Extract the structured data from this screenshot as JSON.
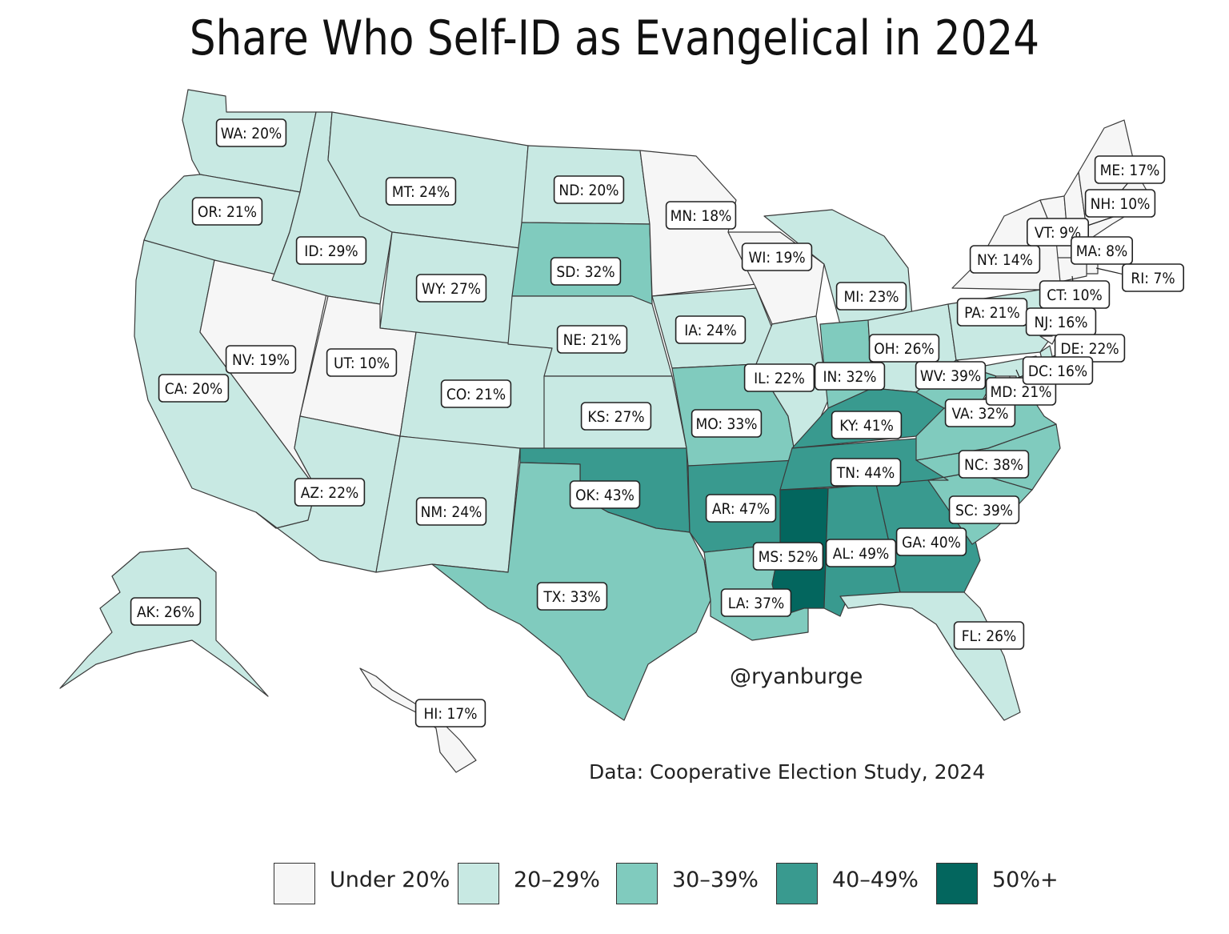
{
  "title": "Share Who Self-ID as Evangelical in 2024",
  "credit": "@ryanburge",
  "source": "Data: Cooperative Election Study, 2024",
  "legend": [
    {
      "label": "Under 20%",
      "color": "#f6f6f6"
    },
    {
      "label": "20–29%",
      "color": "#c8e9e3"
    },
    {
      "label": "30–39%",
      "color": "#80cbbe"
    },
    {
      "label": "40–49%",
      "color": "#399a8f"
    },
    {
      "label": "50%+",
      "color": "#03665e"
    }
  ],
  "states": [
    {
      "abbr": "WA",
      "pct": 20,
      "label": "WA: 20%"
    },
    {
      "abbr": "OR",
      "pct": 21,
      "label": "OR: 21%"
    },
    {
      "abbr": "CA",
      "pct": 20,
      "label": "CA: 20%"
    },
    {
      "abbr": "NV",
      "pct": 19,
      "label": "NV: 19%"
    },
    {
      "abbr": "ID",
      "pct": 29,
      "label": "ID: 29%"
    },
    {
      "abbr": "MT",
      "pct": 24,
      "label": "MT: 24%"
    },
    {
      "abbr": "WY",
      "pct": 27,
      "label": "WY: 27%"
    },
    {
      "abbr": "UT",
      "pct": 10,
      "label": "UT: 10%"
    },
    {
      "abbr": "AZ",
      "pct": 22,
      "label": "AZ: 22%"
    },
    {
      "abbr": "CO",
      "pct": 21,
      "label": "CO: 21%"
    },
    {
      "abbr": "NM",
      "pct": 24,
      "label": "NM: 24%"
    },
    {
      "abbr": "ND",
      "pct": 20,
      "label": "ND: 20%"
    },
    {
      "abbr": "SD",
      "pct": 32,
      "label": "SD: 32%"
    },
    {
      "abbr": "NE",
      "pct": 21,
      "label": "NE: 21%"
    },
    {
      "abbr": "KS",
      "pct": 27,
      "label": "KS: 27%"
    },
    {
      "abbr": "OK",
      "pct": 43,
      "label": "OK: 43%"
    },
    {
      "abbr": "TX",
      "pct": 33,
      "label": "TX: 33%"
    },
    {
      "abbr": "MN",
      "pct": 18,
      "label": "MN: 18%"
    },
    {
      "abbr": "IA",
      "pct": 24,
      "label": "IA: 24%"
    },
    {
      "abbr": "MO",
      "pct": 33,
      "label": "MO: 33%"
    },
    {
      "abbr": "AR",
      "pct": 47,
      "label": "AR: 47%"
    },
    {
      "abbr": "LA",
      "pct": 37,
      "label": "LA: 37%"
    },
    {
      "abbr": "WI",
      "pct": 19,
      "label": "WI: 19%"
    },
    {
      "abbr": "IL",
      "pct": 22,
      "label": "IL: 22%"
    },
    {
      "abbr": "MI",
      "pct": 23,
      "label": "MI: 23%"
    },
    {
      "abbr": "IN",
      "pct": 32,
      "label": "IN: 32%"
    },
    {
      "abbr": "OH",
      "pct": 26,
      "label": "OH: 26%"
    },
    {
      "abbr": "KY",
      "pct": 41,
      "label": "KY: 41%"
    },
    {
      "abbr": "TN",
      "pct": 44,
      "label": "TN: 44%"
    },
    {
      "abbr": "MS",
      "pct": 52,
      "label": "MS: 52%"
    },
    {
      "abbr": "AL",
      "pct": 49,
      "label": "AL: 49%"
    },
    {
      "abbr": "GA",
      "pct": 40,
      "label": "GA: 40%"
    },
    {
      "abbr": "FL",
      "pct": 26,
      "label": "FL: 26%"
    },
    {
      "abbr": "SC",
      "pct": 39,
      "label": "SC: 39%"
    },
    {
      "abbr": "NC",
      "pct": 38,
      "label": "NC: 38%"
    },
    {
      "abbr": "VA",
      "pct": 32,
      "label": "VA: 32%"
    },
    {
      "abbr": "WV",
      "pct": 39,
      "label": "WV: 39%"
    },
    {
      "abbr": "PA",
      "pct": 21,
      "label": "PA: 21%"
    },
    {
      "abbr": "NY",
      "pct": 14,
      "label": "NY: 14%"
    },
    {
      "abbr": "VT",
      "pct": 9,
      "label": "VT: 9%"
    },
    {
      "abbr": "NH",
      "pct": 10,
      "label": "NH: 10%"
    },
    {
      "abbr": "ME",
      "pct": 17,
      "label": "ME: 17%"
    },
    {
      "abbr": "MA",
      "pct": 8,
      "label": "MA: 8%"
    },
    {
      "abbr": "RI",
      "pct": 7,
      "label": "RI: 7%"
    },
    {
      "abbr": "CT",
      "pct": 10,
      "label": "CT: 10%"
    },
    {
      "abbr": "NJ",
      "pct": 16,
      "label": "NJ: 16%"
    },
    {
      "abbr": "DE",
      "pct": 22,
      "label": "DE: 22%"
    },
    {
      "abbr": "MD",
      "pct": 21,
      "label": "MD: 21%"
    },
    {
      "abbr": "DC",
      "pct": 16,
      "label": "DC: 16%"
    },
    {
      "abbr": "AK",
      "pct": 26,
      "label": "AK: 26%"
    },
    {
      "abbr": "HI",
      "pct": 17,
      "label": "HI: 17%"
    }
  ]
}
